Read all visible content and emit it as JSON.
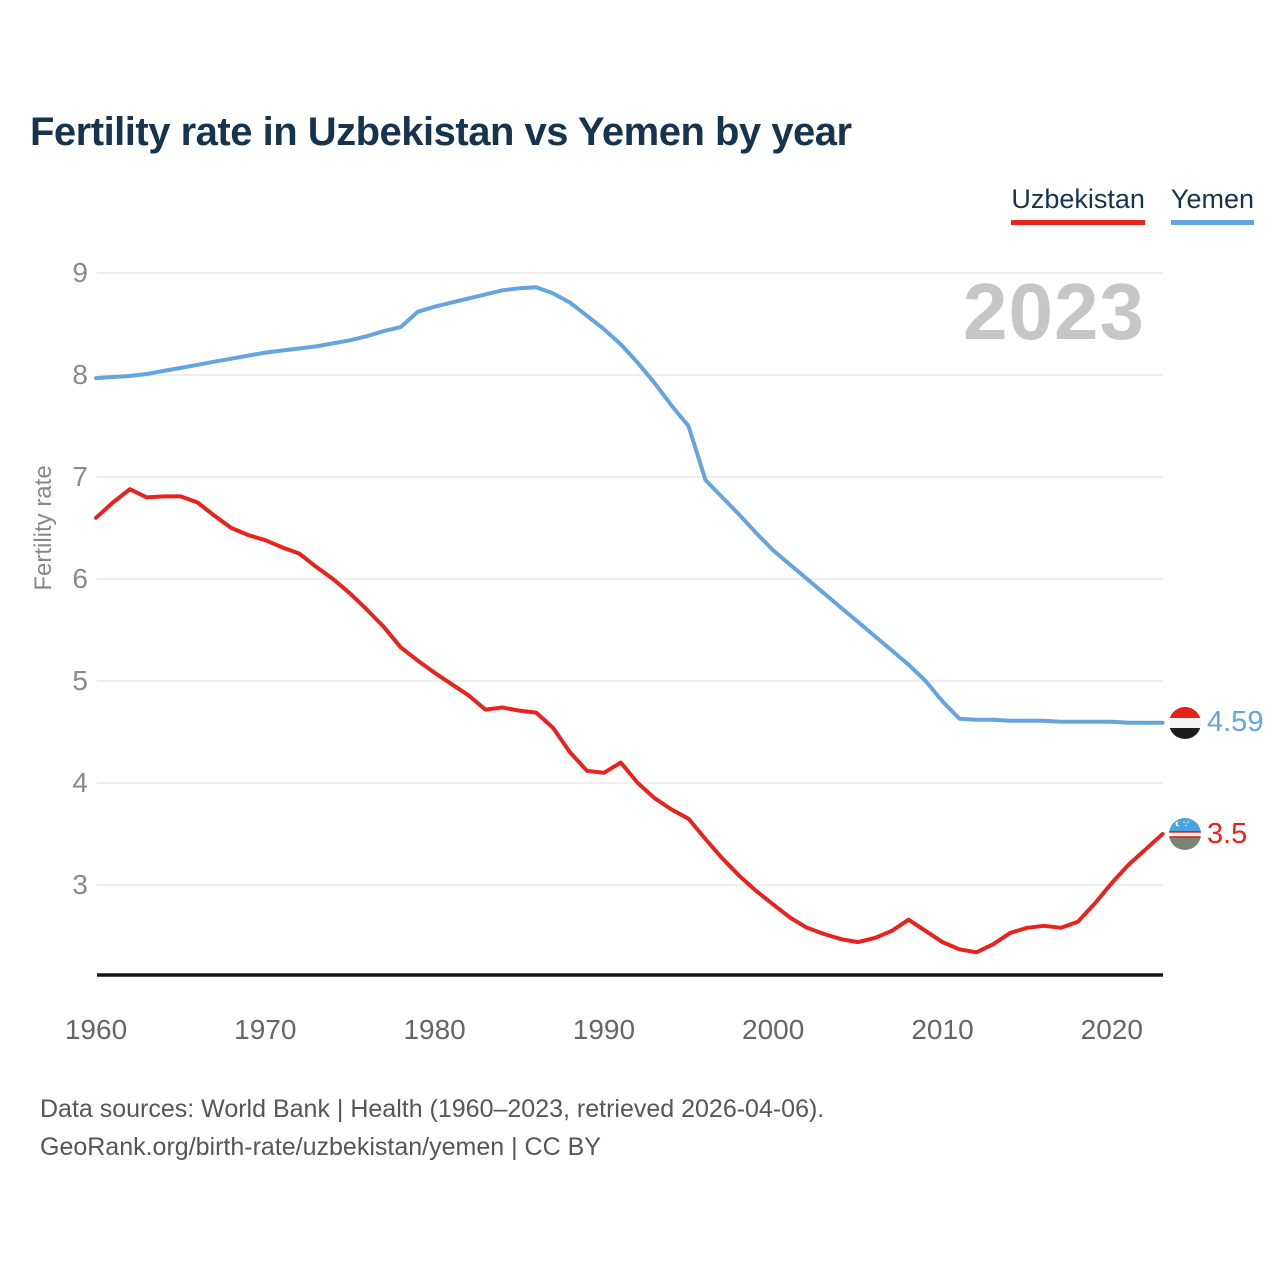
{
  "title": "Fertility rate in Uzbekistan vs Yemen by year",
  "watermark": "2023",
  "legend": [
    {
      "label": "Uzbekistan",
      "color": "#e8231e"
    },
    {
      "label": "Yemen",
      "color": "#64a5e0"
    }
  ],
  "y_axis": {
    "label": "Fertility rate",
    "ticks": [
      9,
      8,
      7,
      6,
      5,
      4,
      3
    ]
  },
  "x_axis": {
    "ticks": [
      1960,
      1970,
      1980,
      1990,
      2000,
      2010,
      2020
    ]
  },
  "end_labels": [
    {
      "series": "Yemen",
      "value": "4.59",
      "color": "#64a5e0",
      "flag": "yemen-flag"
    },
    {
      "series": "Uzbekistan",
      "value": "3.5",
      "color": "#e8231e",
      "flag": "uzbekistan-flag"
    }
  ],
  "sources": {
    "line1": "Data sources: World Bank | Health (1960–2023, retrieved 2026-04-06).",
    "line2": "GeoRank.org/birth-rate/uzbekistan/yemen | CC BY"
  },
  "chart_data": {
    "type": "line",
    "title": "Fertility rate in Uzbekistan vs Yemen by year",
    "xlabel": "",
    "ylabel": "Fertility rate",
    "xlim": [
      1960,
      2023
    ],
    "ylim": [
      2.1,
      9.2
    ],
    "grid": "horizontal",
    "legend_position": "top-right",
    "x": [
      1960,
      1961,
      1962,
      1963,
      1964,
      1965,
      1966,
      1967,
      1968,
      1969,
      1970,
      1971,
      1972,
      1973,
      1974,
      1975,
      1976,
      1977,
      1978,
      1979,
      1980,
      1981,
      1982,
      1983,
      1984,
      1985,
      1986,
      1987,
      1988,
      1989,
      1990,
      1991,
      1992,
      1993,
      1994,
      1995,
      1996,
      1997,
      1998,
      1999,
      2000,
      2001,
      2002,
      2003,
      2004,
      2005,
      2006,
      2007,
      2008,
      2009,
      2010,
      2011,
      2012,
      2013,
      2014,
      2015,
      2016,
      2017,
      2018,
      2019,
      2020,
      2021,
      2022,
      2023
    ],
    "series": [
      {
        "name": "Yemen",
        "color": "#64a5e0",
        "final_value": 4.59,
        "values": [
          7.97,
          7.98,
          7.99,
          8.01,
          8.04,
          8.07,
          8.1,
          8.13,
          8.16,
          8.19,
          8.22,
          8.24,
          8.26,
          8.28,
          8.31,
          8.34,
          8.38,
          8.43,
          8.47,
          8.62,
          8.67,
          8.71,
          8.75,
          8.79,
          8.83,
          8.85,
          8.86,
          8.8,
          8.71,
          8.58,
          8.45,
          8.3,
          8.12,
          7.92,
          7.7,
          7.5,
          6.97,
          6.8,
          6.63,
          6.45,
          6.28,
          6.14,
          6.0,
          5.86,
          5.72,
          5.58,
          5.44,
          5.3,
          5.16,
          5.0,
          4.8,
          4.63,
          4.62,
          4.62,
          4.61,
          4.61,
          4.61,
          4.6,
          4.6,
          4.6,
          4.6,
          4.59,
          4.59,
          4.59
        ]
      },
      {
        "name": "Uzbekistan",
        "color": "#e8231e",
        "final_value": 3.5,
        "values": [
          6.6,
          6.75,
          6.88,
          6.8,
          6.81,
          6.81,
          6.75,
          6.62,
          6.5,
          6.43,
          6.38,
          6.31,
          6.25,
          6.12,
          6.0,
          5.86,
          5.7,
          5.53,
          5.33,
          5.2,
          5.08,
          4.97,
          4.86,
          4.72,
          4.74,
          4.71,
          4.69,
          4.54,
          4.3,
          4.12,
          4.1,
          4.2,
          4.0,
          3.85,
          3.74,
          3.65,
          3.45,
          3.26,
          3.09,
          2.94,
          2.81,
          2.68,
          2.58,
          2.52,
          2.47,
          2.44,
          2.48,
          2.55,
          2.66,
          2.55,
          2.44,
          2.37,
          2.34,
          2.42,
          2.53,
          2.58,
          2.6,
          2.58,
          2.64,
          2.82,
          3.02,
          3.2,
          3.35,
          3.5
        ]
      }
    ]
  }
}
